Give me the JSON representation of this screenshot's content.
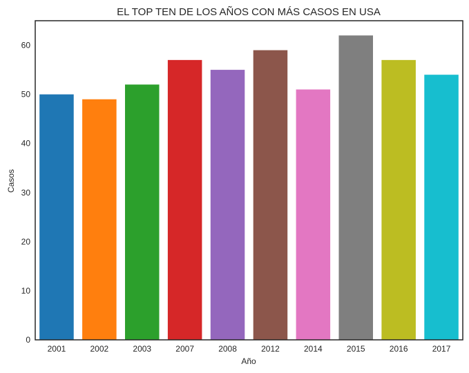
{
  "chart_data": {
    "type": "bar",
    "title": "EL TOP TEN DE LOS AÑOS CON MÁS CASOS EN USA",
    "xlabel": "Año",
    "ylabel": "Casos",
    "categories": [
      "2001",
      "2002",
      "2003",
      "2007",
      "2008",
      "2012",
      "2014",
      "2015",
      "2016",
      "2017"
    ],
    "values": [
      50,
      49,
      52,
      57,
      55,
      59,
      51,
      62,
      57,
      54
    ],
    "colors": [
      "#1f77b4",
      "#ff7f0e",
      "#2ca02c",
      "#d62728",
      "#9467bd",
      "#8c564b",
      "#e377c2",
      "#7f7f7f",
      "#bcbd22",
      "#17becf"
    ],
    "yticks": [
      0,
      10,
      20,
      30,
      40,
      50,
      60
    ],
    "ylim": [
      0,
      65
    ],
    "grid": false,
    "frame_color": "#262626"
  }
}
